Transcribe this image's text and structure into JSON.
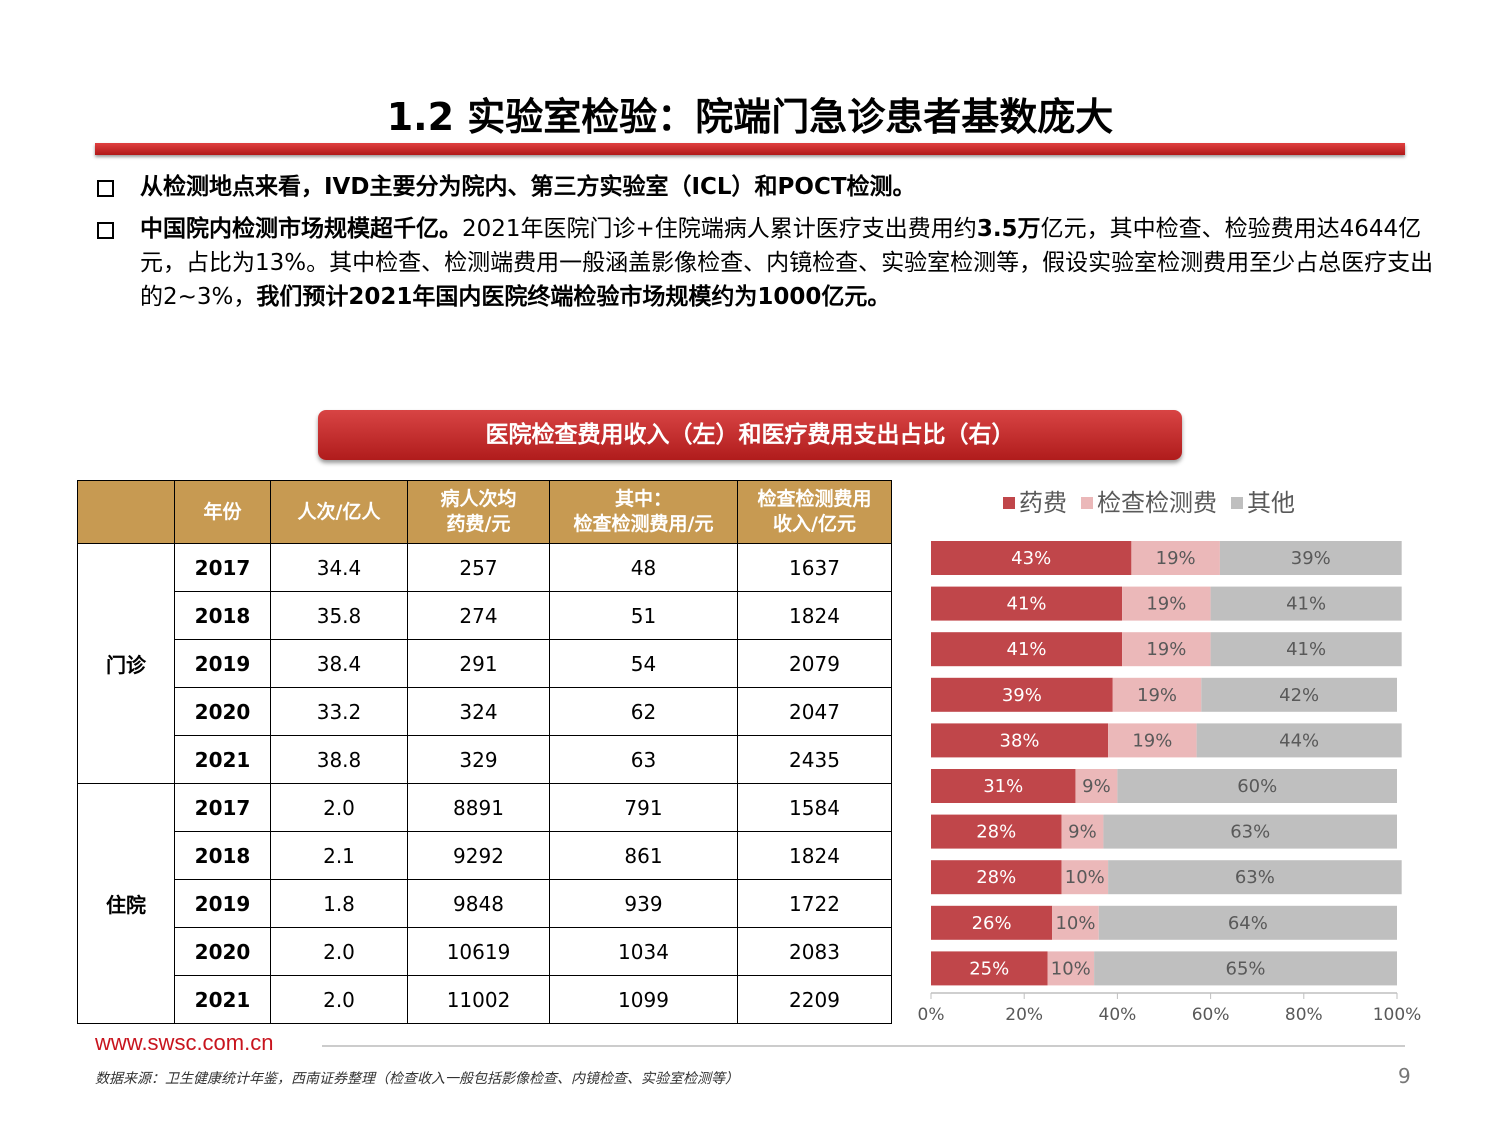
{
  "header": {
    "title": "1.2 实验室检验：院端门急诊患者基数庞大"
  },
  "bullets": [
    [
      {
        "text": "从检测地点来看，IVD主要分为院内、第三方实验室（ICL）和POCT检测。",
        "bold": true
      }
    ],
    [
      {
        "text": "中国院内检测市场规模超千亿。",
        "bold": true
      },
      {
        "text": "2021年医院门诊+住院端病人累计医疗支出费用约",
        "bold": false
      },
      {
        "text": "3.5万",
        "bold": true
      },
      {
        "text": "亿元，其中检查、检验费用达4644亿元，占比为13%。其中检查、检测端费用一般涵盖影像检查、内镜检查、实验室检测等，假设实验室检测费用至少占总医疗支出的2~3%，",
        "bold": false
      },
      {
        "text": "我们预计2021年国内医院终端检验市场规模约为1000亿元。",
        "bold": true
      }
    ]
  ],
  "caption": "医院检查费用收入（左）和医疗费用支出占比（右）",
  "table": {
    "header": [
      [
        "年份"
      ],
      [
        "人次/亿人"
      ],
      [
        "病人次均",
        "药费/元"
      ],
      [
        "其中：",
        "检查检测费用/元"
      ],
      [
        "检查检测费用",
        "收入/亿元"
      ]
    ],
    "groups": [
      {
        "label": "门诊",
        "rows": [
          [
            "2017",
            "34.4",
            "257",
            "48",
            "1637"
          ],
          [
            "2018",
            "35.8",
            "274",
            "51",
            "1824"
          ],
          [
            "2019",
            "38.4",
            "291",
            "54",
            "2079"
          ],
          [
            "2020",
            "33.2",
            "324",
            "62",
            "2047"
          ],
          [
            "2021",
            "38.8",
            "329",
            "63",
            "2435"
          ]
        ]
      },
      {
        "label": "住院",
        "rows": [
          [
            "2017",
            "2.0",
            "8891",
            "791",
            "1584"
          ],
          [
            "2018",
            "2.1",
            "9292",
            "861",
            "1824"
          ],
          [
            "2019",
            "1.8",
            "9848",
            "939",
            "1722"
          ],
          [
            "2020",
            "2.0",
            "10619",
            "1034",
            "2083"
          ],
          [
            "2021",
            "2.0",
            "11002",
            "1099",
            "2209"
          ]
        ]
      }
    ]
  },
  "chart_data": {
    "type": "bar",
    "orientation": "horizontal",
    "stacked": true,
    "legend": "top",
    "xlim": [
      0,
      100
    ],
    "xticks": [
      {
        "value": 0,
        "label": "0%"
      },
      {
        "value": 20,
        "label": "20%"
      },
      {
        "value": 40,
        "label": "40%"
      },
      {
        "value": 60,
        "label": "60%"
      },
      {
        "value": 80,
        "label": "80%"
      },
      {
        "value": 100,
        "label": "100%"
      }
    ],
    "series": [
      {
        "name": "药费",
        "color": "#c0464a",
        "label_color": "#ffffff",
        "values": [
          43,
          41,
          41,
          39,
          38,
          31,
          28,
          28,
          26,
          25
        ],
        "value_labels": [
          "43%",
          "41%",
          "41%",
          "39%",
          "38%",
          "31%",
          "28%",
          "28%",
          "26%",
          "25%"
        ]
      },
      {
        "name": "检查检测费",
        "color": "#ebb8b9",
        "label_color": "#595959",
        "values": [
          19,
          19,
          19,
          19,
          19,
          9,
          9,
          10,
          10,
          10
        ],
        "value_labels": [
          "19%",
          "19%",
          "19%",
          "19%",
          "19%",
          "9%",
          "9%",
          "10%",
          "10%",
          "10%"
        ]
      },
      {
        "name": "其他",
        "color": "#bfbfbf",
        "label_color": "#595959",
        "values": [
          39,
          41,
          41,
          42,
          44,
          60,
          63,
          63,
          64,
          65
        ],
        "value_labels": [
          "39%",
          "41%",
          "41%",
          "42%",
          "44%",
          "60%",
          "63%",
          "63%",
          "64%",
          "65%"
        ]
      }
    ]
  },
  "footer": {
    "url": "www.swsc.com.cn",
    "source": "数据来源：卫生健康统计年鉴，西南证券整理（检查收入一般包括影像检查、内镜检查、实验室检测等）",
    "page": "9"
  }
}
